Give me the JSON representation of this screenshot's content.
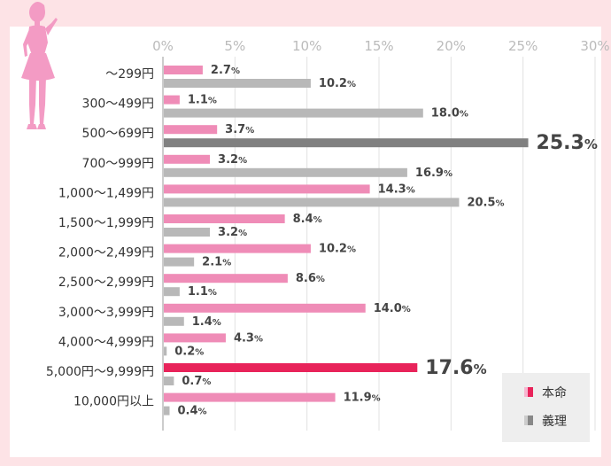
{
  "chart_data": {
    "type": "bar",
    "orientation": "horizontal",
    "xlim": [
      0,
      30
    ],
    "ticks": [
      "0%",
      "5%",
      "10%",
      "15%",
      "20%",
      "25%",
      "30%"
    ],
    "grid": true,
    "legend_position": "bottom-right",
    "categories": [
      "～299円",
      "300～499円",
      "500～699円",
      "700～999円",
      "1,000～1,499円",
      "1,500～1,999円",
      "2,000～2,499円",
      "2,500～2,999円",
      "3,000～3,999円",
      "4,000～4,999円",
      "5,000円～9,999円",
      "10,000円以上"
    ],
    "series": [
      {
        "name": "本命",
        "color": "#ef8cb7",
        "values": [
          2.7,
          1.1,
          3.7,
          3.2,
          14.3,
          8.4,
          10.2,
          8.6,
          14.0,
          4.3,
          17.6,
          11.9
        ],
        "labels": [
          "2.7%",
          "1.1%",
          "3.7%",
          "3.2%",
          "14.3%",
          "8.4%",
          "10.2%",
          "8.6%",
          "14.0%",
          "4.3%",
          "17.6%",
          "11.9%"
        ]
      },
      {
        "name": "義理",
        "color": "#b8b8b8",
        "values": [
          10.2,
          18.0,
          25.3,
          16.9,
          20.5,
          3.2,
          2.1,
          1.1,
          1.4,
          0.2,
          0.7,
          0.4
        ],
        "labels": [
          "10.2%",
          "18.0%",
          "25.3%",
          "16.9%",
          "20.5%",
          "3.2%",
          "2.1%",
          "1.1%",
          "1.4%",
          "0.2%",
          "0.7%",
          "0.4%"
        ]
      }
    ],
    "highlights": [
      {
        "series": 0,
        "index": 10,
        "color": "#e8235a"
      },
      {
        "series": 1,
        "index": 2,
        "color": "#808080"
      }
    ]
  }
}
